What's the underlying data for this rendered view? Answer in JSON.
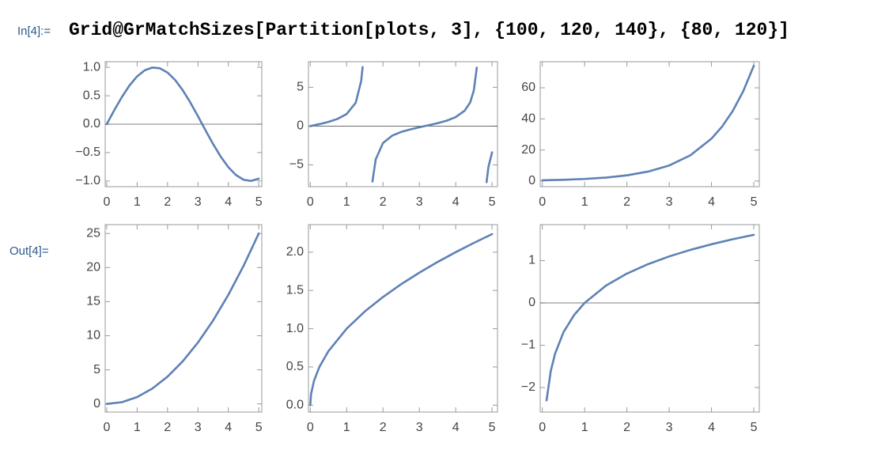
{
  "input_label": "In[4]:=",
  "code": "Grid@GrMatchSizes[Partition[plots, 3], {100, 120, 140}, {80, 120}]",
  "output_label": "Out[4]=",
  "chart_data": [
    {
      "type": "line",
      "x": [
        0,
        0.25,
        0.5,
        0.75,
        1,
        1.25,
        1.5,
        1.75,
        2,
        2.25,
        2.5,
        2.75,
        3,
        3.25,
        3.5,
        3.75,
        4,
        4.25,
        4.5,
        4.75,
        5
      ],
      "series": [
        {
          "color": "#5e81b5",
          "values": [
            0,
            0.247,
            0.479,
            0.682,
            0.841,
            0.949,
            0.997,
            0.984,
            0.909,
            0.778,
            0.598,
            0.382,
            0.141,
            -0.108,
            -0.351,
            -0.572,
            -0.757,
            -0.895,
            -0.978,
            -0.999,
            -0.959
          ]
        }
      ],
      "xlim": [
        -0.05,
        5.1
      ],
      "ylim": [
        -1.1,
        1.1
      ],
      "xticks": [
        0,
        1,
        2,
        3,
        4,
        5
      ],
      "yticks": [
        {
          "value": -1,
          "label": "−1.0"
        },
        {
          "value": -0.5,
          "label": "−0.5"
        },
        {
          "value": 0,
          "label": "0.0"
        },
        {
          "value": 0.5,
          "label": "0.5"
        },
        {
          "value": 1,
          "label": "1.0"
        }
      ],
      "axis_line": true
    },
    {
      "type": "line",
      "x": [
        0,
        0.25,
        0.5,
        0.75,
        1,
        1.25,
        1.4,
        1.44,
        1.57,
        1.71,
        1.8,
        2,
        2.25,
        2.5,
        2.75,
        3,
        3.25,
        3.5,
        3.75,
        4,
        4.25,
        4.4,
        4.5,
        4.58,
        4.71,
        4.85,
        4.9,
        5
      ],
      "series": [
        {
          "color": "#5e81b5",
          "values": [
            0,
            0.255,
            0.546,
            0.932,
            1.557,
            3.01,
            5.798,
            7.602,
            null,
            -7.14,
            -4.286,
            -2.185,
            -1.238,
            -0.747,
            -0.427,
            -0.143,
            0.108,
            0.375,
            0.697,
            1.158,
            2.006,
            3.06,
            4.637,
            7.53,
            null,
            -7.22,
            -5.27,
            -3.381
          ]
        }
      ],
      "xlim": [
        -0.05,
        5.15
      ],
      "ylim": [
        -7.8,
        8.3
      ],
      "xticks": [
        0,
        1,
        2,
        3,
        4,
        5
      ],
      "yticks": [
        {
          "value": -5,
          "label": "−5"
        },
        0,
        5
      ],
      "axis_line": true
    },
    {
      "type": "line",
      "x": [
        0,
        0.5,
        1,
        1.5,
        2,
        2.5,
        3,
        3.5,
        4,
        4.25,
        4.5,
        4.75,
        5
      ],
      "series": [
        {
          "color": "#5e81b5",
          "values": [
            0.5,
            0.824,
            1.359,
            2.241,
            3.695,
            6.091,
            10.04,
            16.56,
            27.3,
            35.05,
            45.01,
            57.79,
            74.21
          ]
        }
      ],
      "xlim": [
        -0.05,
        5.13
      ],
      "ylim": [
        -3.6,
        76.8
      ],
      "xticks": [
        0,
        1,
        2,
        3,
        4,
        5
      ],
      "yticks": [
        0,
        20,
        40,
        60
      ],
      "axis_line": false
    },
    {
      "type": "line",
      "x": [
        0,
        0.5,
        1,
        1.5,
        2,
        2.5,
        3,
        3.5,
        4,
        4.5,
        5
      ],
      "series": [
        {
          "color": "#5e81b5",
          "values": [
            0,
            0.25,
            1,
            2.25,
            4,
            6.25,
            9,
            12.25,
            16,
            20.25,
            25
          ]
        }
      ],
      "xlim": [
        -0.05,
        5.1
      ],
      "ylim": [
        -1.2,
        26.3
      ],
      "xticks": [
        0,
        1,
        2,
        3,
        4,
        5
      ],
      "yticks": [
        0,
        5,
        10,
        15,
        20,
        25
      ],
      "axis_line": false
    },
    {
      "type": "line",
      "x": [
        0,
        0.02,
        0.1,
        0.25,
        0.5,
        1,
        1.5,
        2,
        2.5,
        3,
        3.5,
        4,
        4.5,
        5
      ],
      "series": [
        {
          "color": "#5e81b5",
          "values": [
            0,
            0.141,
            0.316,
            0.5,
            0.707,
            1,
            1.225,
            1.414,
            1.581,
            1.732,
            1.871,
            2,
            2.121,
            2.236
          ]
        }
      ],
      "xlim": [
        -0.05,
        5.15
      ],
      "ylim": [
        -0.09,
        2.36
      ],
      "xticks": [
        0,
        1,
        2,
        3,
        4,
        5
      ],
      "yticks": [
        {
          "value": 0,
          "label": "0.0"
        },
        {
          "value": 0.5,
          "label": "0.5"
        },
        {
          "value": 1,
          "label": "1.0"
        },
        {
          "value": 1.5,
          "label": "1.5"
        },
        {
          "value": 2,
          "label": "2.0"
        }
      ],
      "axis_line": false
    },
    {
      "type": "line",
      "x": [
        0.1,
        0.2,
        0.3,
        0.5,
        0.75,
        1,
        1.5,
        2,
        2.5,
        3,
        3.5,
        4,
        4.5,
        5
      ],
      "series": [
        {
          "color": "#5e81b5",
          "values": [
            -2.303,
            -1.609,
            -1.204,
            -0.693,
            -0.288,
            0,
            0.405,
            0.693,
            0.916,
            1.099,
            1.253,
            1.386,
            1.504,
            1.609
          ]
        }
      ],
      "xlim": [
        -0.05,
        5.13
      ],
      "ylim": [
        -2.58,
        1.85
      ],
      "xticks": [
        0,
        1,
        2,
        3,
        4,
        5
      ],
      "yticks": [
        {
          "value": -2,
          "label": "−2"
        },
        {
          "value": -1,
          "label": "−1"
        },
        0,
        1
      ],
      "axis_line": true
    }
  ]
}
